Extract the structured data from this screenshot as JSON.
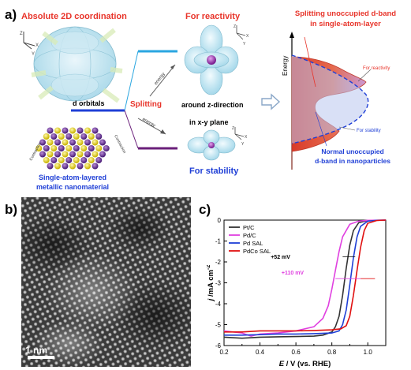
{
  "panel_labels": {
    "a": "a)",
    "b": "b)",
    "c": "c)"
  },
  "panel_a": {
    "absolute_title": "Absolute 2D coordination",
    "d_orbitals": "d orbitals",
    "splitting": "Splitting",
    "energy": "energy",
    "for_reactivity": "For reactivity",
    "around_z": "around z-direction",
    "in_xy_plane": "in x-y plane",
    "for_stability": "For stability",
    "contraction": "Contraction",
    "material_line1": "Single-atom-layered",
    "material_line2": "metallic nanomaterial",
    "axis_x": "X",
    "axis_y": "Y",
    "axis_z": "Z",
    "colors": {
      "red": "#e8352b",
      "blue": "#1f3fd6",
      "purple": "#6a1f7a",
      "cyan": "#2aa6e0"
    }
  },
  "panel_dos": {
    "title_line1": "Splitting unoccupied  d-band",
    "title_line2": "in single-atom-layer",
    "ylabel": "Energy",
    "reactivity_label": "For reactivity",
    "stability_label": "For stability",
    "normal_line1": "Normal unoccupied",
    "normal_line2": "d-band in nanoparticles"
  },
  "panel_b": {
    "scale_bar": "1 nm"
  },
  "chart_data": {
    "type": "line",
    "xlabel_italic": "E",
    "xlabel_rest": " / V (vs. RHE)",
    "ylabel_italic": "j",
    "ylabel_rest": " /mA cm",
    "ylabel_sup": "-2",
    "xlim": [
      0.2,
      1.1
    ],
    "ylim": [
      -6,
      0
    ],
    "xticks": [
      "0.2",
      "0.4",
      "0.6",
      "0.8",
      "1.0"
    ],
    "xtick_values": [
      0.2,
      0.4,
      0.6,
      0.8,
      1.0
    ],
    "yticks": [
      "0",
      "-1",
      "-2",
      "-3",
      "-4",
      "-5",
      "-6"
    ],
    "ytick_values": [
      0,
      -1,
      -2,
      -3,
      -4,
      -5,
      -6
    ],
    "legend_position": "top-left",
    "annotations": [
      {
        "text": "+52 mV",
        "color": "#000000"
      },
      {
        "text": "+110 mV",
        "color": "#e040e0"
      }
    ],
    "series": [
      {
        "name": "Pt/C",
        "color": "#333333",
        "x": [
          0.2,
          0.3,
          0.4,
          0.5,
          0.6,
          0.7,
          0.75,
          0.8,
          0.82,
          0.84,
          0.86,
          0.88,
          0.9,
          0.92,
          0.95,
          1.0,
          1.1
        ],
        "y": [
          -5.6,
          -5.65,
          -5.6,
          -5.58,
          -5.57,
          -5.55,
          -5.5,
          -5.35,
          -5.1,
          -4.6,
          -3.6,
          -2.3,
          -1.2,
          -0.5,
          -0.12,
          -0.02,
          0.0
        ]
      },
      {
        "name": "Pd/C",
        "color": "#e040e0",
        "x": [
          0.2,
          0.3,
          0.35,
          0.4,
          0.5,
          0.6,
          0.7,
          0.75,
          0.78,
          0.8,
          0.82,
          0.84,
          0.86,
          0.9,
          0.95,
          1.0,
          1.1
        ],
        "y": [
          -5.3,
          -5.4,
          -5.55,
          -5.45,
          -5.4,
          -5.3,
          -5.1,
          -4.7,
          -4.1,
          -3.3,
          -2.4,
          -1.5,
          -0.8,
          -0.2,
          -0.05,
          -0.01,
          0.0
        ]
      },
      {
        "name": "Pd SAL",
        "color": "#1f3fd6",
        "x": [
          0.2,
          0.3,
          0.4,
          0.5,
          0.6,
          0.7,
          0.8,
          0.84,
          0.86,
          0.88,
          0.9,
          0.92,
          0.94,
          0.96,
          1.0,
          1.05,
          1.1
        ],
        "y": [
          -5.5,
          -5.5,
          -5.48,
          -5.45,
          -5.45,
          -5.43,
          -5.4,
          -5.3,
          -5.0,
          -4.3,
          -3.1,
          -1.8,
          -0.8,
          -0.3,
          -0.05,
          -0.01,
          0.0
        ]
      },
      {
        "name": "PdCo SAL",
        "color": "#e01010",
        "x": [
          0.2,
          0.3,
          0.4,
          0.5,
          0.6,
          0.7,
          0.8,
          0.85,
          0.88,
          0.9,
          0.92,
          0.94,
          0.96,
          0.98,
          1.0,
          1.05,
          1.1
        ],
        "y": [
          -5.35,
          -5.35,
          -5.3,
          -5.3,
          -5.3,
          -5.28,
          -5.25,
          -5.2,
          -5.05,
          -4.6,
          -3.6,
          -2.4,
          -1.3,
          -0.5,
          -0.15,
          -0.02,
          0.0
        ]
      }
    ]
  }
}
